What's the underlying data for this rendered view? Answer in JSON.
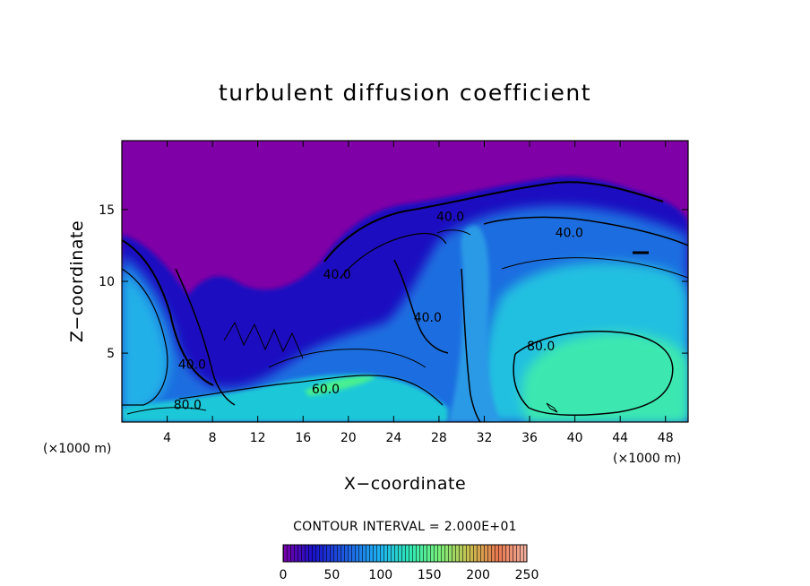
{
  "chart_data": {
    "type": "heatmap",
    "title": "turbulent diffusion coefficient",
    "xlabel": "X−coordinate",
    "ylabel": "Z−coordinate",
    "x_unit": "(×1000 m)",
    "x_unit_right": "(×1000 m)",
    "xlim": [
      0,
      50
    ],
    "ylim": [
      0.2,
      19.8
    ],
    "x_ticks": [
      4,
      8,
      12,
      16,
      20,
      24,
      28,
      32,
      36,
      40,
      44,
      48
    ],
    "y_ticks": [
      5,
      10,
      15
    ],
    "contour_interval_text": "CONTOUR INTERVAL = 2.000E+01",
    "contour_labels": [
      {
        "text": "40.0",
        "x": 29.0,
        "y": 14.2
      },
      {
        "text": "40.0",
        "x": 39.5,
        "y": 13.1
      },
      {
        "text": "40.0",
        "x": 6.2,
        "y": 3.9
      },
      {
        "text": "40.0",
        "x": 19.0,
        "y": 10.2
      },
      {
        "text": "40.0",
        "x": 27.0,
        "y": 7.2
      },
      {
        "text": "60.0",
        "x": 18.0,
        "y": 2.2
      },
      {
        "text": "80.0",
        "x": 37.0,
        "y": 5.2
      },
      {
        "text": "80.0",
        "x": 5.8,
        "y": 1.1
      }
    ],
    "colorbar": {
      "ticks": [
        0,
        50,
        100,
        150,
        200,
        250
      ],
      "range": [
        0,
        250
      ],
      "colors": [
        "#7a00a8",
        "#1a10c8",
        "#1e6ae6",
        "#1eb4f0",
        "#2fe8b4",
        "#78f07a",
        "#c8c050",
        "#e87850",
        "#f0b0a0"
      ]
    },
    "field_colors": {
      "background": "#7f00a6",
      "low": "#1a10c0",
      "mid": "#1f78e6",
      "high": "#22d8d0",
      "peak": "#4af0a0"
    }
  }
}
